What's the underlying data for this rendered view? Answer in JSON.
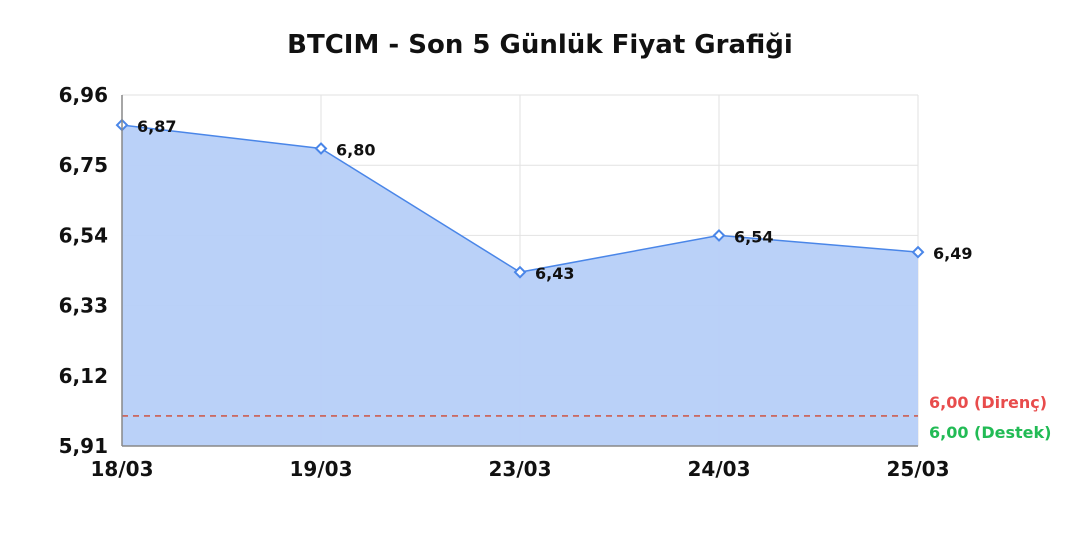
{
  "chart_data": {
    "type": "area",
    "title": "BTCIM - Son 5 Günlük Fiyat Grafiği",
    "xlabel": "",
    "ylabel": "",
    "categories": [
      "18/03",
      "19/03",
      "23/03",
      "24/03",
      "25/03"
    ],
    "values": [
      6.87,
      6.8,
      6.43,
      6.54,
      6.49
    ],
    "data_labels": [
      "6,87",
      "6,80",
      "6,43",
      "6,54",
      "6,49"
    ],
    "ylim": [
      5.91,
      6.96
    ],
    "yticks": [
      5.91,
      6.12,
      6.33,
      6.54,
      6.75,
      6.96
    ],
    "ytick_labels": [
      "5,91",
      "6,12",
      "6,33",
      "6,54",
      "6,75",
      "6,96"
    ],
    "grid": true,
    "reference_lines": [
      {
        "value": 6.0,
        "label": "6,00 (Destek)",
        "color": "#22bb55"
      },
      {
        "value": 6.0,
        "label": "6,00 (Direnç)",
        "color": "#e84c4c"
      }
    ],
    "colors": {
      "line": "#4a86e8",
      "fill": "#b6cff8"
    }
  }
}
